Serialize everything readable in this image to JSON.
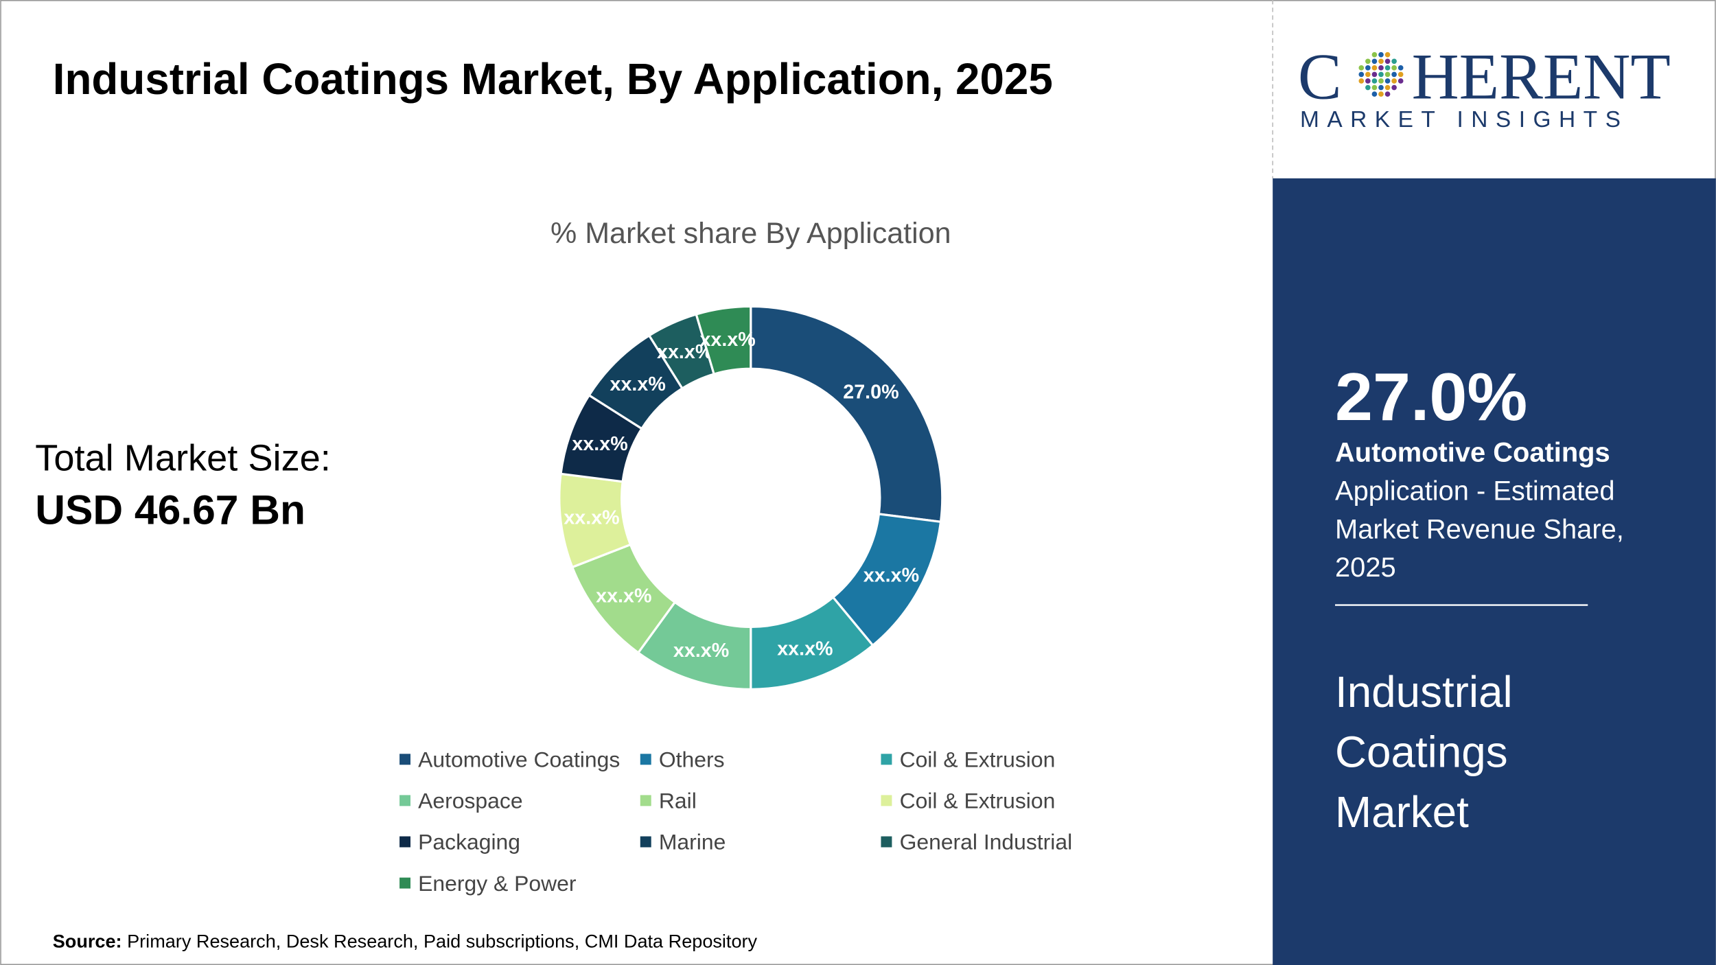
{
  "header": {
    "title": "Industrial Coatings Market, By Application, 2025"
  },
  "logo": {
    "parts": [
      "C",
      "HERENT"
    ],
    "tagline": "MARKET INSIGHTS"
  },
  "market_size": {
    "label": "Total Market Size:",
    "value": "USD 46.67 Bn"
  },
  "sidebar": {
    "value": "27.0%",
    "segment": "Automotive Coatings",
    "lines": [
      "Application - Estimated",
      "Market Revenue Share,",
      "2025"
    ],
    "market": [
      "Industrial",
      "Coatings",
      "Market"
    ]
  },
  "source": {
    "label": "Source:",
    "text": "Primary Research, Desk Research, Paid subscriptions, CMI Data Repository"
  },
  "chart_data": {
    "type": "donut",
    "title": "% Market share By Application",
    "categories": [
      "Automotive Coatings",
      "Others",
      "Coil & Extrusion",
      "Aerospace",
      "Rail",
      "Coil & Extrusion",
      "Packaging",
      "Marine",
      "General Industrial",
      "Energy & Power"
    ],
    "values": [
      27.0,
      12.0,
      11.0,
      10.0,
      9.1,
      7.9,
      7.0,
      7.1,
      4.3,
      4.6
    ],
    "value_labels": [
      "27.0%",
      "xx.x%",
      "xx.x%",
      "xx.x%",
      "xx.x%",
      "xx.x%",
      "xx.x%",
      "xx.x%",
      "xx.x%",
      "xx.x%"
    ],
    "colors": [
      "#1a4d78",
      "#1b77a3",
      "#2fa3a6",
      "#74c997",
      "#a2dc8c",
      "#ddf09b",
      "#0e2a48",
      "#12405c",
      "#1d5e5f",
      "#2f8b55"
    ]
  }
}
